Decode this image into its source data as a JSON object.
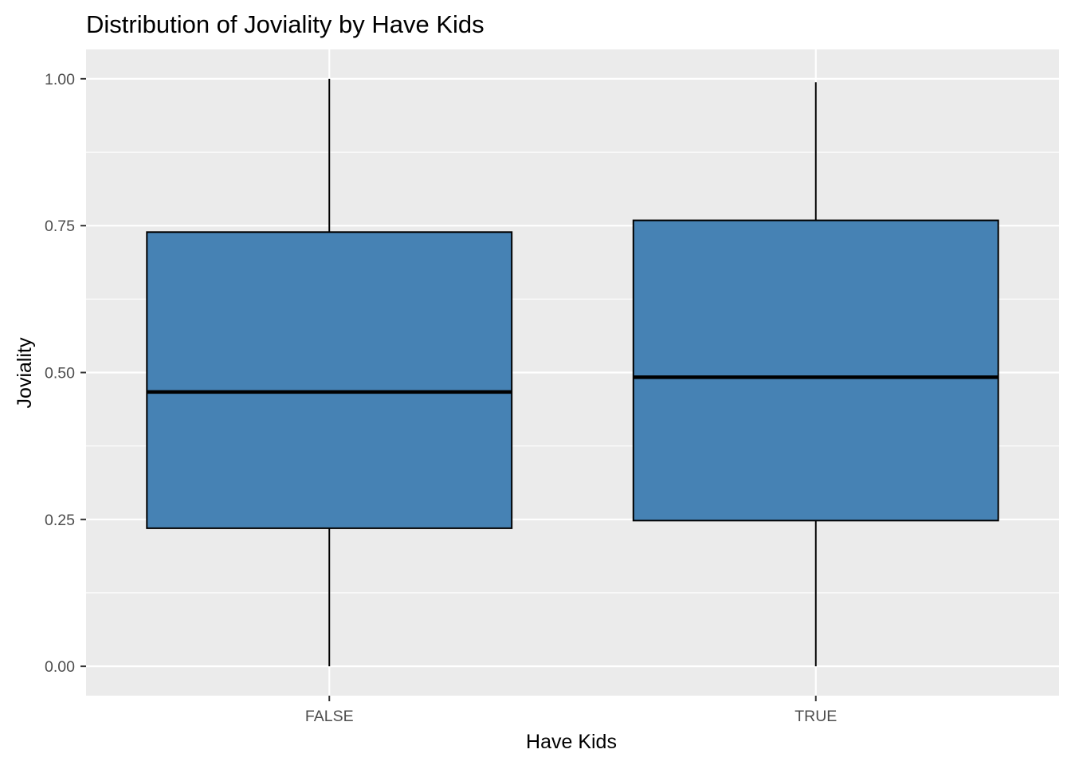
{
  "chart_data": {
    "type": "box",
    "title": "Distribution of Joviality by Have Kids",
    "xlabel": "Have Kids",
    "ylabel": "Joviality",
    "categories": [
      "FALSE",
      "TRUE"
    ],
    "ylim": [
      -0.05,
      1.05
    ],
    "yticks": [
      0.0,
      0.25,
      0.5,
      0.75,
      1.0
    ],
    "ytick_labels": [
      "0.00",
      "0.25",
      "0.50",
      "0.75",
      "1.00"
    ],
    "boxes": [
      {
        "category": "FALSE",
        "whisker_low": 0.0,
        "q1": 0.235,
        "median": 0.467,
        "q3": 0.739,
        "whisker_high": 1.0
      },
      {
        "category": "TRUE",
        "whisker_low": 0.0,
        "q1": 0.248,
        "median": 0.492,
        "q3": 0.759,
        "whisker_high": 0.994
      }
    ],
    "fill_color": "#4682B4",
    "panel_background": "#EBEBEB",
    "grid": true,
    "legend": "none"
  }
}
